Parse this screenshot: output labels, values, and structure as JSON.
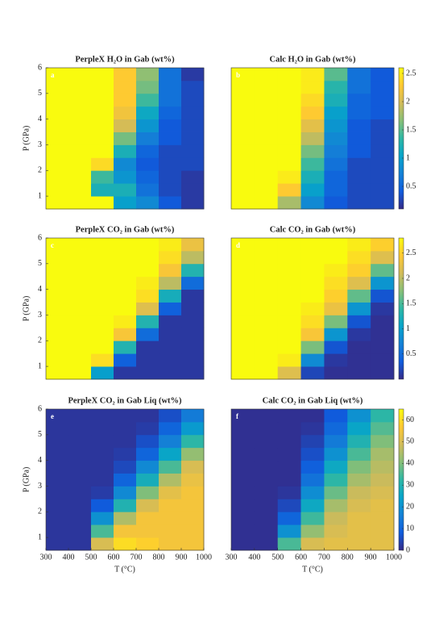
{
  "colormap": [
    "#352a87",
    "#0f5cdd",
    "#1481d6",
    "#06a4ca",
    "#2eb7a4",
    "#87bf77",
    "#d1bb59",
    "#fec832",
    "#f9fb0e"
  ],
  "chart_data": [
    {
      "type": "heatmap",
      "title": "PerpleX H₂O in Gab (wt%)",
      "label": "a",
      "ylabel": "P (GPa)",
      "xlim": [
        300,
        1000
      ],
      "ylim": [
        0.5,
        6
      ],
      "yticks": [
        1,
        2,
        3,
        4,
        5,
        6
      ],
      "clim": [
        0.1,
        2.6
      ],
      "x": [
        350,
        450,
        550,
        650,
        750,
        850,
        950
      ],
      "y": [
        0.75,
        1.25,
        1.75,
        2.25,
        2.75,
        3.25,
        3.75,
        4.25,
        4.75,
        5.25,
        5.75
      ],
      "z": [
        [
          2.6,
          2.6,
          2.6,
          1.0,
          0.8,
          0.4,
          0.2
        ],
        [
          2.6,
          2.6,
          1.2,
          1.2,
          0.6,
          0.3,
          0.2
        ],
        [
          2.6,
          2.6,
          1.4,
          0.9,
          0.5,
          0.3,
          0.2
        ],
        [
          2.6,
          2.6,
          2.4,
          0.8,
          0.4,
          0.3,
          0.3
        ],
        [
          2.6,
          2.6,
          2.6,
          1.2,
          0.5,
          0.3,
          0.3
        ],
        [
          2.6,
          2.6,
          2.6,
          1.6,
          0.7,
          0.4,
          0.3
        ],
        [
          2.6,
          2.6,
          2.6,
          2.0,
          0.9,
          0.4,
          0.3
        ],
        [
          2.6,
          2.6,
          2.6,
          2.2,
          1.1,
          0.5,
          0.3
        ],
        [
          2.6,
          2.6,
          2.6,
          2.3,
          1.4,
          0.6,
          0.3
        ],
        [
          2.6,
          2.6,
          2.6,
          2.3,
          1.6,
          0.6,
          0.3
        ],
        [
          2.6,
          2.6,
          2.6,
          2.3,
          1.7,
          0.6,
          0.2
        ]
      ]
    },
    {
      "type": "heatmap",
      "title": "Calc H₂O in Gab (wt%)",
      "label": "b",
      "xlim": [
        300,
        1000
      ],
      "ylim": [
        0.5,
        6
      ],
      "clim": [
        0.1,
        2.6
      ],
      "colorbar_ticks": [
        0.5,
        1,
        1.5,
        2,
        2.5
      ],
      "x": [
        350,
        450,
        550,
        650,
        750,
        850,
        950
      ],
      "y": [
        0.75,
        1.25,
        1.75,
        2.25,
        2.75,
        3.25,
        3.75,
        4.25,
        4.75,
        5.25,
        5.75
      ],
      "z": [
        [
          2.6,
          2.6,
          1.8,
          0.8,
          0.4,
          0.3,
          0.3
        ],
        [
          2.6,
          2.6,
          2.3,
          1.0,
          0.5,
          0.3,
          0.3
        ],
        [
          2.6,
          2.6,
          2.5,
          1.2,
          0.5,
          0.3,
          0.3
        ],
        [
          2.6,
          2.6,
          2.6,
          1.4,
          0.6,
          0.3,
          0.3
        ],
        [
          2.6,
          2.6,
          2.6,
          1.6,
          0.7,
          0.4,
          0.3
        ],
        [
          2.6,
          2.6,
          2.6,
          1.9,
          0.8,
          0.4,
          0.3
        ],
        [
          2.6,
          2.6,
          2.6,
          2.1,
          0.9,
          0.4,
          0.3
        ],
        [
          2.6,
          2.6,
          2.6,
          2.3,
          1.0,
          0.5,
          0.4
        ],
        [
          2.6,
          2.6,
          2.6,
          2.4,
          1.2,
          0.5,
          0.4
        ],
        [
          2.6,
          2.6,
          2.6,
          2.5,
          1.3,
          0.6,
          0.4
        ],
        [
          2.6,
          2.6,
          2.6,
          2.5,
          1.5,
          0.6,
          0.4
        ]
      ]
    },
    {
      "type": "heatmap",
      "title": "PerpleX CO₂ in Gab (wt%)",
      "label": "c",
      "ylabel": "P (GPa)",
      "xlim": [
        300,
        1000
      ],
      "ylim": [
        0.5,
        6
      ],
      "yticks": [
        1,
        2,
        3,
        4,
        5,
        6
      ],
      "clim": [
        0,
        2.8
      ],
      "x": [
        350,
        450,
        550,
        650,
        750,
        850,
        950
      ],
      "y": [
        0.75,
        1.25,
        1.75,
        2.25,
        2.75,
        3.25,
        3.75,
        4.25,
        4.75,
        5.25,
        5.75
      ],
      "z": [
        [
          2.8,
          2.8,
          1.0,
          0.1,
          0.1,
          0.1,
          0.1
        ],
        [
          2.8,
          2.8,
          2.6,
          0.4,
          0.1,
          0.1,
          0.1
        ],
        [
          2.8,
          2.8,
          2.8,
          1.3,
          0.1,
          0.1,
          0.1
        ],
        [
          2.8,
          2.8,
          2.8,
          2.4,
          0.5,
          0.1,
          0.1
        ],
        [
          2.8,
          2.8,
          2.8,
          2.7,
          1.3,
          0.1,
          0.1
        ],
        [
          2.8,
          2.8,
          2.8,
          2.8,
          2.2,
          0.4,
          0.1
        ],
        [
          2.8,
          2.8,
          2.8,
          2.8,
          2.6,
          1.2,
          0.1
        ],
        [
          2.8,
          2.8,
          2.8,
          2.8,
          2.7,
          2.0,
          0.5
        ],
        [
          2.8,
          2.8,
          2.8,
          2.8,
          2.8,
          2.4,
          1.3
        ],
        [
          2.8,
          2.8,
          2.8,
          2.8,
          2.8,
          2.6,
          2.0
        ],
        [
          2.8,
          2.8,
          2.8,
          2.8,
          2.8,
          2.7,
          2.3
        ]
      ]
    },
    {
      "type": "heatmap",
      "title": "Calc CO₂ in Gab (wt%)",
      "label": "d",
      "xlim": [
        300,
        1000
      ],
      "ylim": [
        0.5,
        6
      ],
      "clim": [
        0,
        2.8
      ],
      "colorbar_ticks": [
        0.5,
        1,
        1.5,
        2,
        2.5
      ],
      "x": [
        350,
        450,
        550,
        650,
        750,
        850,
        950
      ],
      "y": [
        0.75,
        1.25,
        1.75,
        2.25,
        2.75,
        3.25,
        3.75,
        4.25,
        4.75,
        5.25,
        5.75
      ],
      "z": [
        [
          2.8,
          2.8,
          2.2,
          0.2,
          0.05,
          0.05,
          0.05
        ],
        [
          2.8,
          2.8,
          2.7,
          0.8,
          0.1,
          0.05,
          0.05
        ],
        [
          2.8,
          2.8,
          2.8,
          1.7,
          0.3,
          0.05,
          0.05
        ],
        [
          2.8,
          2.8,
          2.8,
          2.4,
          0.9,
          0.1,
          0.05
        ],
        [
          2.8,
          2.8,
          2.8,
          2.6,
          1.7,
          0.3,
          0.05
        ],
        [
          2.8,
          2.8,
          2.8,
          2.7,
          2.3,
          0.9,
          0.1
        ],
        [
          2.8,
          2.8,
          2.8,
          2.8,
          2.5,
          1.6,
          0.3
        ],
        [
          2.8,
          2.8,
          2.8,
          2.8,
          2.6,
          2.2,
          0.9
        ],
        [
          2.8,
          2.8,
          2.8,
          2.8,
          2.7,
          2.5,
          1.6
        ],
        [
          2.8,
          2.8,
          2.8,
          2.8,
          2.8,
          2.6,
          2.2
        ],
        [
          2.8,
          2.8,
          2.8,
          2.8,
          2.8,
          2.7,
          2.5
        ]
      ]
    },
    {
      "type": "heatmap",
      "title": "PerpleX CO₂ in Gab Liq (wt%)",
      "label": "e",
      "ylabel": "P (GPa)",
      "xlabel": "T (°C)",
      "xlim": [
        300,
        1000
      ],
      "ylim": [
        0.5,
        6
      ],
      "xticks": [
        300,
        400,
        500,
        600,
        700,
        800,
        900,
        1000
      ],
      "yticks": [
        1,
        2,
        3,
        4,
        5,
        6
      ],
      "clim": [
        0,
        65
      ],
      "x": [
        350,
        450,
        550,
        650,
        750,
        850,
        950
      ],
      "y": [
        0.75,
        1.25,
        1.75,
        2.25,
        2.75,
        3.25,
        3.75,
        4.25,
        4.75,
        5.25,
        5.75
      ],
      "z": [
        [
          2,
          2,
          50,
          60,
          58,
          55,
          55
        ],
        [
          2,
          2,
          35,
          55,
          55,
          55,
          55
        ],
        [
          2,
          2,
          20,
          45,
          55,
          55,
          55
        ],
        [
          2,
          2,
          8,
          30,
          50,
          55,
          55
        ],
        [
          2,
          2,
          3,
          18,
          40,
          52,
          55
        ],
        [
          2,
          2,
          2,
          10,
          28,
          45,
          53
        ],
        [
          2,
          2,
          2,
          5,
          18,
          35,
          50
        ],
        [
          2,
          2,
          2,
          3,
          10,
          25,
          42
        ],
        [
          2,
          2,
          2,
          2,
          6,
          16,
          32
        ],
        [
          2,
          2,
          2,
          2,
          3,
          10,
          22
        ],
        [
          2,
          2,
          2,
          2,
          2,
          6,
          15
        ]
      ]
    },
    {
      "type": "heatmap",
      "title": "Calc CO₂ in Gab Liq (wt%)",
      "label": "f",
      "xlabel": "T (°C)",
      "xlim": [
        300,
        1000
      ],
      "ylim": [
        0.5,
        6
      ],
      "xticks": [
        300,
        400,
        500,
        600,
        700,
        800,
        900,
        1000
      ],
      "clim": [
        0,
        65
      ],
      "colorbar_ticks": [
        0,
        10,
        20,
        30,
        40,
        50,
        60
      ],
      "x": [
        350,
        450,
        550,
        650,
        750,
        850,
        950
      ],
      "y": [
        0.75,
        1.25,
        1.75,
        2.25,
        2.75,
        3.25,
        3.75,
        4.25,
        4.75,
        5.25,
        5.75
      ],
      "z": [
        [
          1,
          1,
          35,
          50,
          52,
          52,
          52
        ],
        [
          1,
          1,
          20,
          42,
          50,
          52,
          52
        ],
        [
          1,
          1,
          10,
          34,
          48,
          52,
          52
        ],
        [
          1,
          1,
          5,
          26,
          44,
          50,
          52
        ],
        [
          1,
          1,
          2,
          19,
          38,
          48,
          50
        ],
        [
          1,
          1,
          1,
          13,
          32,
          44,
          48
        ],
        [
          1,
          1,
          1,
          9,
          26,
          40,
          46
        ],
        [
          1,
          1,
          1,
          6,
          20,
          35,
          44
        ],
        [
          1,
          1,
          1,
          4,
          15,
          30,
          40
        ],
        [
          1,
          1,
          1,
          2,
          11,
          25,
          36
        ],
        [
          1,
          1,
          1,
          1,
          8,
          20,
          32
        ]
      ]
    }
  ]
}
